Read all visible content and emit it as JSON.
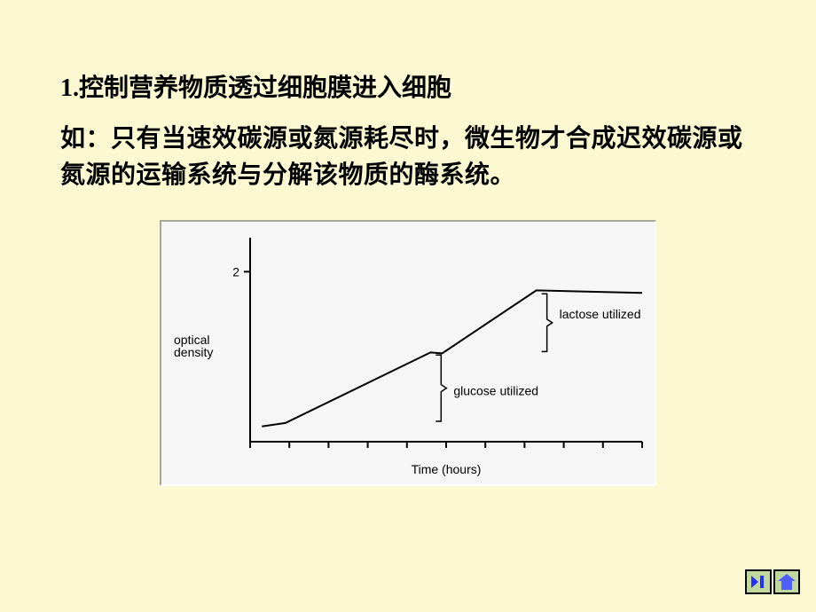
{
  "heading": "1.控制营养物质透过细胞膜进入细胞",
  "paragraph": "如：只有当速效碳源或氮源耗尽时，微生物才合成迟效碳源或氮源的运输系统与分解该物质的酶系统。",
  "chart": {
    "type": "line",
    "background_color": "#f6f6f6",
    "axis_color": "#000000",
    "line_color": "#000000",
    "line_width": 2,
    "ylabel_top": "optical",
    "ylabel_bottom": "density",
    "xlabel": "Time (hours)",
    "ytick_label": "2",
    "label_fontsize": 14,
    "annotation1": "glucose utilized",
    "annotation2": "lactose utilized",
    "xlim": [
      0,
      10
    ],
    "ylim": [
      0,
      2.4
    ],
    "x_ticks": [
      0,
      1,
      2,
      3,
      4,
      5,
      6,
      7,
      8,
      9,
      10
    ],
    "line_points": [
      [
        0.3,
        0.18
      ],
      [
        0.9,
        0.22
      ],
      [
        4.6,
        1.05
      ],
      [
        4.9,
        1.04
      ],
      [
        7.3,
        1.78
      ],
      [
        10.0,
        1.75
      ]
    ]
  },
  "nav": {
    "next": "next",
    "home": "home"
  }
}
